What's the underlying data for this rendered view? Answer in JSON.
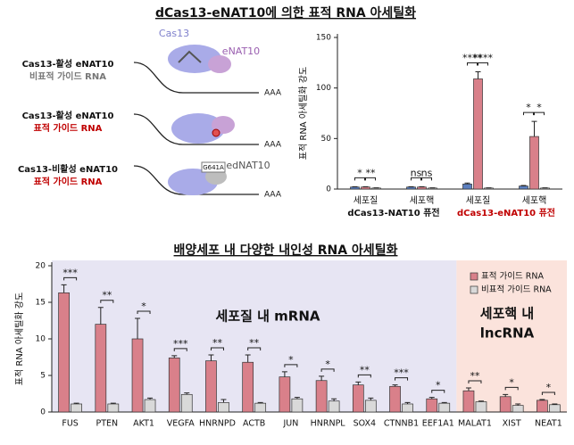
{
  "title": "dCas13-eNAT10에 의한 표적 RNA 아세틸화",
  "diagram": {
    "protein_label": "Cas13",
    "enzyme_label": "eNAT10",
    "rows": [
      {
        "construct": "Cas13-활성 eNAT10",
        "guide": "비표적 가이드 RNA",
        "tail": "AAA"
      },
      {
        "construct": "Cas13-활성 eNAT10",
        "guide": "표적 가이드 RNA",
        "tail": "AAA"
      },
      {
        "construct": "Cas13-비활성 eNAT10",
        "guide": "표적 가이드 RNA",
        "tail": "AAA"
      }
    ],
    "mutation_label": "G641A",
    "dead_enzyme_label": "edNAT10"
  },
  "chart_data": [
    {
      "type": "bar",
      "ylabel": "표적 RNA 아세틸화 강도",
      "categories": [
        "세포질",
        "세포핵",
        "세포질",
        "세포핵"
      ],
      "groups": [
        {
          "label": "dCas13-NAT10 퓨전",
          "color": "#111111"
        },
        {
          "label": "dCas13-eNAT10 퓨전",
          "color": "#c00000"
        }
      ],
      "series": [
        {
          "color": "#5b7fbf",
          "values": [
            2,
            2,
            5,
            3
          ],
          "errors": [
            0.3,
            0.3,
            1,
            0.5
          ]
        },
        {
          "color": "#d9808a",
          "values": [
            2,
            2,
            109,
            52
          ],
          "errors": [
            0.3,
            0.3,
            7,
            15
          ]
        },
        {
          "color": "#d9d9d9",
          "values": [
            1,
            1,
            1,
            1
          ],
          "errors": [
            0.2,
            0.2,
            0.2,
            0.2
          ]
        }
      ],
      "significance": [
        [
          "*",
          "**"
        ],
        [
          "ns",
          "ns"
        ],
        [
          "****",
          "****"
        ],
        [
          "*",
          "*"
        ]
      ],
      "ylim": [
        0,
        150
      ],
      "yticks": [
        0,
        50,
        100,
        150
      ]
    },
    {
      "type": "bar",
      "title": "배양세포 내 다양한 내인성 RNA 아세틸화",
      "ylabel": "표적 RNA 아세틸화 강도",
      "categories": [
        "FUS",
        "PTEN",
        "AKT1",
        "VEGFA",
        "HNRNPD",
        "ACTB",
        "JUN",
        "HNRNPL",
        "SOX4",
        "CTNNB1",
        "EEF1A1",
        "MALAT1",
        "XIST",
        "NEAT1"
      ],
      "series": [
        {
          "name": "표적 가이드 RNA",
          "color": "#d9808a",
          "values": [
            16.3,
            12,
            10,
            7.4,
            7,
            6.8,
            4.8,
            4.3,
            3.7,
            3.5,
            1.8,
            2.9,
            2.1,
            1.6
          ],
          "errors": [
            1.1,
            2.3,
            2.8,
            0.3,
            0.8,
            1.0,
            0.7,
            0.6,
            0.4,
            0.2,
            0.2,
            0.4,
            0.3,
            0.1
          ]
        },
        {
          "name": "비표적 가이드 RNA",
          "color": "#d9d9d9",
          "values": [
            1.1,
            1.1,
            1.7,
            2.4,
            1.3,
            1.2,
            1.8,
            1.5,
            1.6,
            1.1,
            1.2,
            1.4,
            0.9,
            1.0
          ],
          "errors": [
            0.1,
            0.1,
            0.2,
            0.2,
            0.4,
            0.1,
            0.2,
            0.3,
            0.3,
            0.2,
            0.1,
            0.1,
            0.2,
            0.1
          ]
        }
      ],
      "significance": [
        "***",
        "**",
        "*",
        "***",
        "**",
        "**",
        "*",
        "*",
        "**",
        "***",
        "*",
        "**",
        "*",
        "*"
      ],
      "regions": [
        {
          "label": [
            "세포질 내 mRNA"
          ],
          "color": "#e7e5f3"
        },
        {
          "label": [
            "세포핵 내",
            "lncRNA"
          ],
          "color": "#fbe3dc"
        }
      ],
      "legend": "upper right",
      "ylim": [
        0,
        20
      ],
      "yticks": [
        0,
        5,
        10,
        15,
        20
      ]
    }
  ]
}
